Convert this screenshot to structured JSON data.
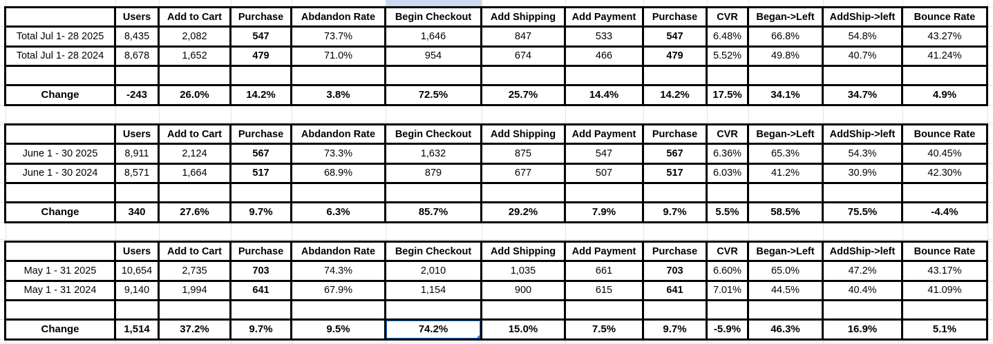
{
  "columns": [
    "Users",
    "Add to Cart",
    "Purchase",
    "Abdandon Rate",
    "Begin Checkout",
    "Add Shipping",
    "Add Payment",
    "Purchase",
    "CVR",
    "Began->Left",
    "AddShip->left",
    "Bounce Rate"
  ],
  "tables": [
    {
      "name": "july-2025-vs-2024",
      "rows": [
        {
          "label": "Total Jul 1- 28 2025",
          "values": [
            "8,435",
            "2,082",
            "547",
            "73.7%",
            "1,646",
            "847",
            "533",
            "547",
            "6.48%",
            "66.8%",
            "54.8%",
            "43.27%"
          ]
        },
        {
          "label": "Total Jul 1- 28 2024",
          "values": [
            "8,678",
            "1,652",
            "479",
            "71.0%",
            "954",
            "674",
            "466",
            "479",
            "5.52%",
            "49.8%",
            "40.7%",
            "41.24%"
          ]
        },
        {
          "label": "",
          "values": [
            "",
            "",
            "",
            "",
            "",
            "",
            "",
            "",
            "",
            "",
            "",
            ""
          ]
        },
        {
          "label": "Change",
          "bold": true,
          "values": [
            "-243",
            "26.0%",
            "14.2%",
            "3.8%",
            "72.5%",
            "25.7%",
            "14.4%",
            "14.2%",
            "17.5%",
            "34.1%",
            "34.7%",
            "4.9%"
          ],
          "cellStyles": {
            "0": "negative",
            "4": "green",
            "7": "green",
            "8": "green"
          }
        }
      ]
    },
    {
      "name": "june-2025-vs-2024",
      "rows": [
        {
          "label": "June 1 - 30 2025",
          "values": [
            "8,911",
            "2,124",
            "567",
            "73.3%",
            "1,632",
            "875",
            "547",
            "567",
            "6.36%",
            "65.3%",
            "54.3%",
            "40.45%"
          ]
        },
        {
          "label": "June 1 - 30 2024",
          "values": [
            "8,571",
            "1,664",
            "517",
            "68.9%",
            "879",
            "677",
            "507",
            "517",
            "6.03%",
            "41.2%",
            "30.9%",
            "42.30%"
          ]
        },
        {
          "label": "",
          "values": [
            "",
            "",
            "",
            "",
            "",
            "",
            "",
            "",
            "",
            "",
            "",
            ""
          ]
        },
        {
          "label": "Change",
          "bold": true,
          "values": [
            "340",
            "27.6%",
            "9.7%",
            "6.3%",
            "85.7%",
            "29.2%",
            "7.9%",
            "9.7%",
            "5.5%",
            "58.5%",
            "75.5%",
            "-4.4%"
          ],
          "cellStyles": {
            "4": "green",
            "7": "green",
            "8": "green"
          }
        }
      ]
    },
    {
      "name": "may-2025-vs-2024",
      "rows": [
        {
          "label": "May 1 - 31 2025",
          "values": [
            "10,654",
            "2,735",
            "703",
            "74.3%",
            "2,010",
            "1,035",
            "661",
            "703",
            "6.60%",
            "65.0%",
            "47.2%",
            "43.17%"
          ]
        },
        {
          "label": "May 1 - 31 2024",
          "values": [
            "9,140",
            "1,994",
            "641",
            "67.9%",
            "1,154",
            "900",
            "615",
            "641",
            "7.01%",
            "44.5%",
            "40.4%",
            "41.09%"
          ]
        },
        {
          "label": "",
          "values": [
            "",
            "",
            "",
            "",
            "",
            "",
            "",
            "",
            "",
            "",
            "",
            ""
          ]
        },
        {
          "label": "Change",
          "bold": true,
          "values": [
            "1,514",
            "37.2%",
            "9.7%",
            "9.5%",
            "74.2%",
            "15.0%",
            "7.5%",
            "9.7%",
            "-5.9%",
            "46.3%",
            "16.9%",
            "5.1%"
          ],
          "cellStyles": {
            "4": "selected"
          }
        }
      ]
    }
  ],
  "colors": {
    "highlight_green": "#00ff00",
    "negative_red": "#ff0000",
    "selection_blue": "#1a73e8",
    "column_highlight": "#cdd9f0",
    "gridline": "#e2e2e2",
    "table_border": "#000000"
  }
}
